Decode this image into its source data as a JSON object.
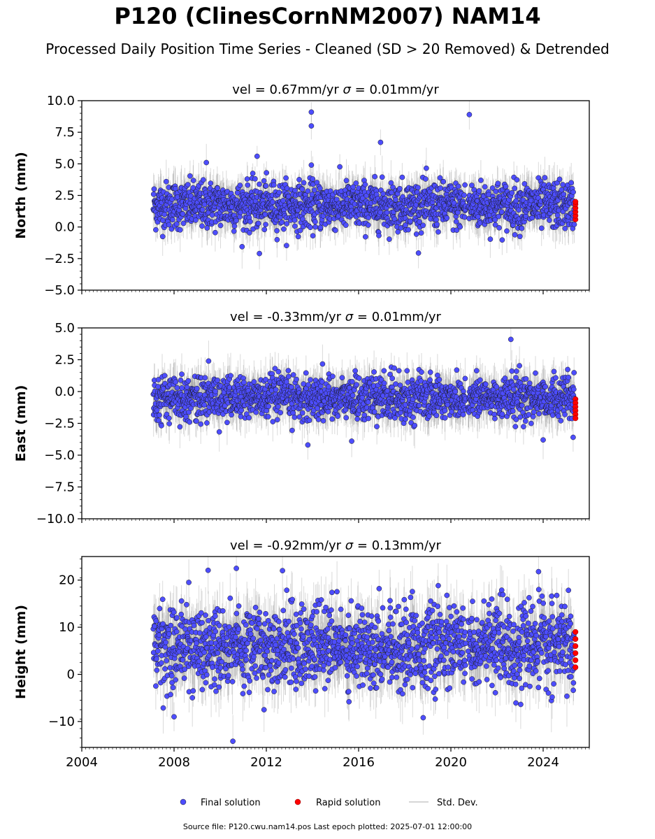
{
  "header": {
    "title": "P120 (ClinesCornNM2007) NAM14",
    "subtitle": "Processed Daily Position Time Series - Cleaned (SD > 20 Removed) & Detrended"
  },
  "footer": {
    "source": "Source file: P120.cwu.nam14.pos  Last epoch plotted: 2025-07-01 12:00:00"
  },
  "legend": {
    "final": "Final solution",
    "rapid": "Rapid solution",
    "std": "Std. Dev."
  },
  "colors": {
    "final": "#4d4dff",
    "rapid": "#ff0000",
    "std": "#c8c8c8",
    "marker_edge": "#1a1a1a"
  },
  "chart_data": [
    {
      "type": "scatter",
      "title_prefix": "vel = 0.67mm/yr",
      "title_sigma": "= 0.01mm/yr",
      "ylabel": "North (mm)",
      "xlim": [
        2004,
        2026
      ],
      "ylim": [
        -5,
        10
      ],
      "yticks": [
        -5,
        -2.5,
        0,
        2.5,
        5,
        7.5,
        10
      ],
      "ytick_labels": [
        "−5.0",
        "−2.5",
        "0.0",
        "2.5",
        "5.0",
        "7.5",
        "10.0"
      ],
      "xticks": [
        2004,
        2008,
        2012,
        2016,
        2020,
        2024
      ],
      "xtick_labels": [],
      "data_range": [
        2007.1,
        2025.35
      ],
      "gap": [
        2020.65,
        2020.75
      ],
      "mean": 1.7,
      "spread": 1.1,
      "std_dev": 1.3,
      "outliers": [
        [
          2013.95,
          9.1
        ],
        [
          2013.95,
          8.0
        ],
        [
          2020.8,
          8.9
        ],
        [
          2016.95,
          6.7
        ],
        [
          2011.6,
          5.6
        ],
        [
          2013.95,
          4.9
        ],
        [
          2009.4,
          5.1
        ],
        [
          2011.7,
          -2.1
        ]
      ],
      "rapid": {
        "x": 2025.4,
        "values": [
          0.6,
          0.9,
          1.2,
          1.5,
          1.8,
          2.0
        ]
      }
    },
    {
      "type": "scatter",
      "title_prefix": "vel = -0.33mm/yr",
      "title_sigma": "= 0.01mm/yr",
      "ylabel": "East (mm)",
      "xlim": [
        2004,
        2026
      ],
      "ylim": [
        -10,
        5
      ],
      "yticks": [
        -10,
        -7.5,
        -5,
        -2.5,
        0,
        2.5,
        5
      ],
      "ytick_labels": [
        "−10.0",
        "−7.5",
        "−5.0",
        "−2.5",
        "0.0",
        "2.5",
        "5.0"
      ],
      "xticks": [
        2004,
        2008,
        2012,
        2016,
        2020,
        2024
      ],
      "xtick_labels": [],
      "data_range": [
        2007.1,
        2025.35
      ],
      "gap": [
        2020.65,
        2020.75
      ],
      "mean": -0.5,
      "spread": 1.0,
      "std_dev": 1.3,
      "outliers": [
        [
          2022.6,
          4.1
        ],
        [
          2013.8,
          -4.2
        ],
        [
          2015.7,
          -3.9
        ],
        [
          2024.0,
          -3.8
        ],
        [
          2025.3,
          -3.6
        ]
      ],
      "rapid": {
        "x": 2025.4,
        "values": [
          -0.6,
          -0.9,
          -1.2,
          -1.5,
          -1.8,
          -2.1
        ]
      }
    },
    {
      "type": "scatter",
      "title_prefix": "vel = -0.92mm/yr",
      "title_sigma": "= 0.13mm/yr",
      "ylabel": "Height (mm)",
      "xlim": [
        2004,
        2026
      ],
      "ylim": [
        -15.5,
        25
      ],
      "yticks": [
        -10,
        0,
        10,
        20
      ],
      "ytick_labels": [
        "−10",
        "0",
        "10",
        "20"
      ],
      "xticks": [
        2004,
        2008,
        2012,
        2016,
        2020,
        2024
      ],
      "xtick_labels": [
        "2004",
        "2008",
        "2012",
        "2016",
        "2020",
        "2024"
      ],
      "data_range": [
        2007.1,
        2025.35
      ],
      "gap": [
        2020.65,
        2020.75
      ],
      "mean": 6.0,
      "spread": 5.0,
      "std_dev": 5.0,
      "outliers": [
        [
          2010.7,
          22.5
        ],
        [
          2010.55,
          -14.2
        ],
        [
          2011.9,
          -7.5
        ],
        [
          2018.8,
          -9.2
        ],
        [
          2008.0,
          -9.0
        ],
        [
          2023.8,
          21.8
        ],
        [
          2012.7,
          22.0
        ]
      ],
      "rapid": {
        "x": 2025.4,
        "values": [
          1.5,
          3.0,
          4.5,
          6.0,
          7.5,
          9.0
        ]
      }
    }
  ]
}
